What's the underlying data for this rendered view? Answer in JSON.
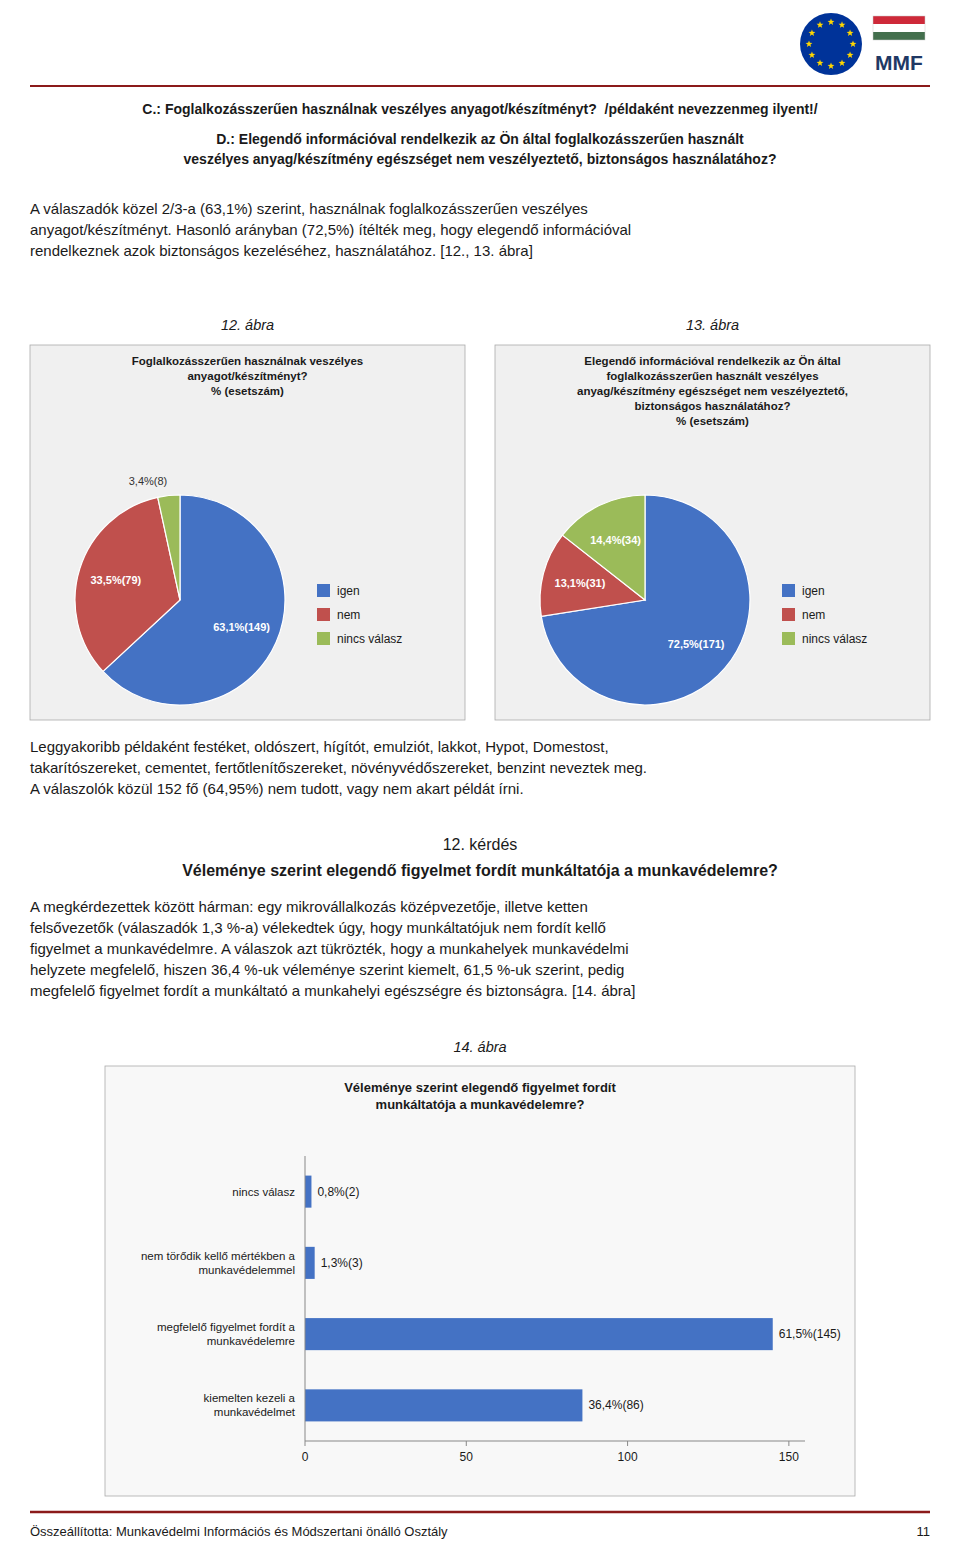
{
  "page": {
    "logo_text": "MMF",
    "rule_color": "#8B1A1A",
    "heading_c": "C.: Foglalkozásszerűen használnak veszélyes anyagot/készítményt?  /példaként nevezzenmeg ilyent!/",
    "heading_d": "D.: Elegendő információval rendelkezik az Ön által foglalkozásszerűen használt\nveszélyes anyag/készítmény egészséget nem veszélyeztető, biztonságos használatához?",
    "paragraphs": [
      "A válaszadók közel 2/3-a (63,1%) szerint, használnak foglalkozásszerűen veszélyes\nanyagot/készítményt. Hasonló arányban (72,5%) ítélték meg, hogy elegendő információval\nrendelkeznek azok biztonságos kezeléséhez, használatához. [12., 13. ábra]",
      "Leggyakoribb példaként festéket, oldószert, hígítót, emulziót, lakkot, Hypot, Domestost,\ntakarítószereket, cementet, fertőtlenítőszereket, növényvédőszereket, benzint neveztek meg.\nA válaszolók közül 152 fő (64,95%) nem tudott, vagy nem akart példát írni.",
      "A megkérdezettek között hárman: egy mikrovállalkozás középvezetője, illetve ketten\nfelsővezetők (válaszadók 1,3 %-a) vélekedtek úgy, hogy munkáltatójuk nem fordít kellő\nfigyelmet a munkavédelmre. A válaszok azt tükrözték, hogy a munkahelyek munkavédelmi\nhelyzete megfelelő, hiszen 36,4 %-uk véleménye szerint kiemelt, 61,5 %-uk szerint, pedig\nmegfelelő figyelmet fordít a munkáltató a munkahelyi egészségre és biztonságra. [14. ábra]"
    ],
    "captions": [
      "12. ábra",
      "13. ábra",
      "14. ábra"
    ],
    "section_number": "12. kérdés",
    "section_question": "Véleménye szerint elegendő figyelmet fordít munkáltatója a munkavédelemre?",
    "footer_text": "Összeállította: Munkavédelmi Információs és Módszertani önálló Osztály",
    "footer_page": "11"
  },
  "chart_data": [
    {
      "type": "pie",
      "title": "Foglalkozásszerűen használnak veszélyes\nanyagot/készítményt?\n% (esetszám)",
      "categories": [
        "igen",
        "nem",
        "nincs válasz"
      ],
      "values": [
        63.1,
        33.5,
        3.4
      ],
      "value_labels": [
        "63,1%(149)",
        "33,5%(79)",
        "3,4%(8)"
      ],
      "colors": [
        "#4472C4",
        "#C0504D",
        "#9BBB59"
      ],
      "legend": "right",
      "data_labels": true
    },
    {
      "type": "pie",
      "title": "Elegendő információval rendelkezik az Ön által\nfoglalkozásszerűen használt veszélyes\nanyag/készítmény egészséget nem veszélyeztető,\nbiztonságos használatához?\n% (esetszám)",
      "categories": [
        "igen",
        "nem",
        "nincs válasz"
      ],
      "values": [
        72.5,
        13.1,
        14.4
      ],
      "value_labels": [
        "72,5%(171)",
        "13,1%(31)",
        "14,4%(34)"
      ],
      "colors": [
        "#4472C4",
        "#C0504D",
        "#9BBB59"
      ],
      "legend": "right",
      "data_labels": true
    },
    {
      "type": "bar",
      "orientation": "horizontal",
      "title": "Véleménye szerint elegendő figyelmet fordít\nmunkáltatója a munkavédelemre?",
      "categories": [
        "nincs válasz",
        "nem törődik kellő mértékben a\nmunkavédelemmel",
        "megfelelő figyelmet fordít a\nmunkavédelemre",
        "kiemelten kezeli a\nmunkavédelmet"
      ],
      "values": [
        2,
        3,
        145,
        86
      ],
      "value_labels": [
        "0,8%(2)",
        "1,3%(3)",
        "61,5%(145)",
        "36,4%(86)"
      ],
      "color": "#4472C4",
      "xlim": [
        0,
        155
      ],
      "xticks": [
        0,
        50,
        100,
        150
      ],
      "grid": false,
      "data_labels": true
    }
  ]
}
